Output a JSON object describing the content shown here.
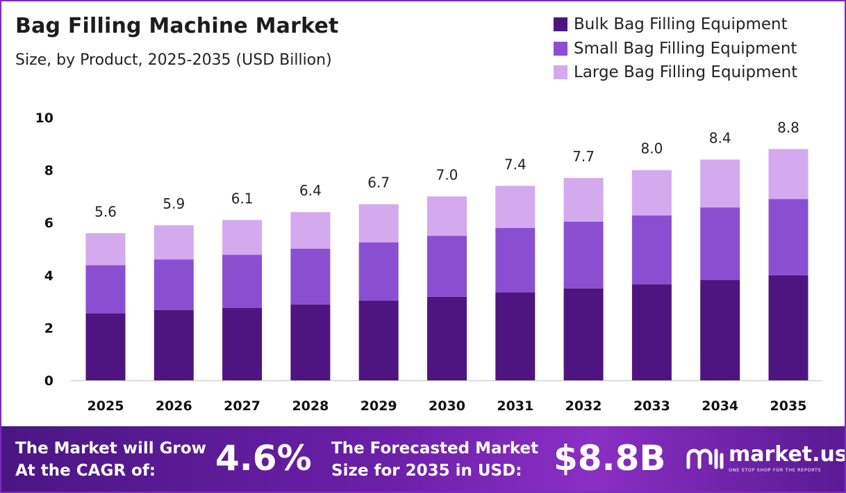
{
  "title": "Bag Filling Machine Market",
  "subtitle": "Size, by Product, 2025-2035 (USD Billion)",
  "colors": {
    "bulk": "#4e1580",
    "small": "#8a4fd0",
    "large": "#d4a9ee",
    "border": "#7b2bc0",
    "banner": "#6b1fa8"
  },
  "legend": [
    {
      "label": "Bulk Bag Filling Equipment",
      "color": "#4e1580"
    },
    {
      "label": "Small Bag Filling Equipment",
      "color": "#8a4fd0"
    },
    {
      "label": "Large Bag Filling Equipment",
      "color": "#d4a9ee"
    }
  ],
  "chart_data": {
    "type": "bar",
    "stacked": true,
    "categories": [
      "2025",
      "2026",
      "2027",
      "2028",
      "2029",
      "2030",
      "2031",
      "2032",
      "2033",
      "2034",
      "2035"
    ],
    "series": [
      {
        "name": "Bulk Bag Filling Equipment",
        "values": [
          2.55,
          2.68,
          2.76,
          2.89,
          3.03,
          3.18,
          3.35,
          3.5,
          3.65,
          3.82,
          4.0
        ]
      },
      {
        "name": "Small Bag Filling Equipment",
        "values": [
          1.83,
          1.92,
          2.02,
          2.12,
          2.22,
          2.32,
          2.45,
          2.54,
          2.62,
          2.76,
          2.9
        ]
      },
      {
        "name": "Large Bag Filling Equipment",
        "values": [
          1.22,
          1.3,
          1.32,
          1.39,
          1.45,
          1.5,
          1.6,
          1.66,
          1.73,
          1.82,
          1.9
        ]
      }
    ],
    "totals": [
      "5.6",
      "5.9",
      "6.1",
      "6.4",
      "6.7",
      "7.0",
      "7.4",
      "7.7",
      "8.0",
      "8.4",
      "8.8"
    ],
    "yticks": [
      "0",
      "2",
      "4",
      "6",
      "8",
      "10"
    ],
    "ylim": [
      0,
      10
    ],
    "grid": false,
    "legend_position": "top-right"
  },
  "footer": {
    "cagr_label_line1": "The Market will Grow",
    "cagr_label_line2": "At the CAGR of:",
    "cagr_value": "4.6%",
    "forecast_label_line1": "The Forecasted Market",
    "forecast_label_line2": "Size for 2035 in USD:",
    "forecast_value": "$8.8B",
    "logo_name": "market.us",
    "logo_tagline": "ONE STOP SHOP FOR THE REPORTS",
    "logo_icon": "market-us-logo-icon"
  }
}
